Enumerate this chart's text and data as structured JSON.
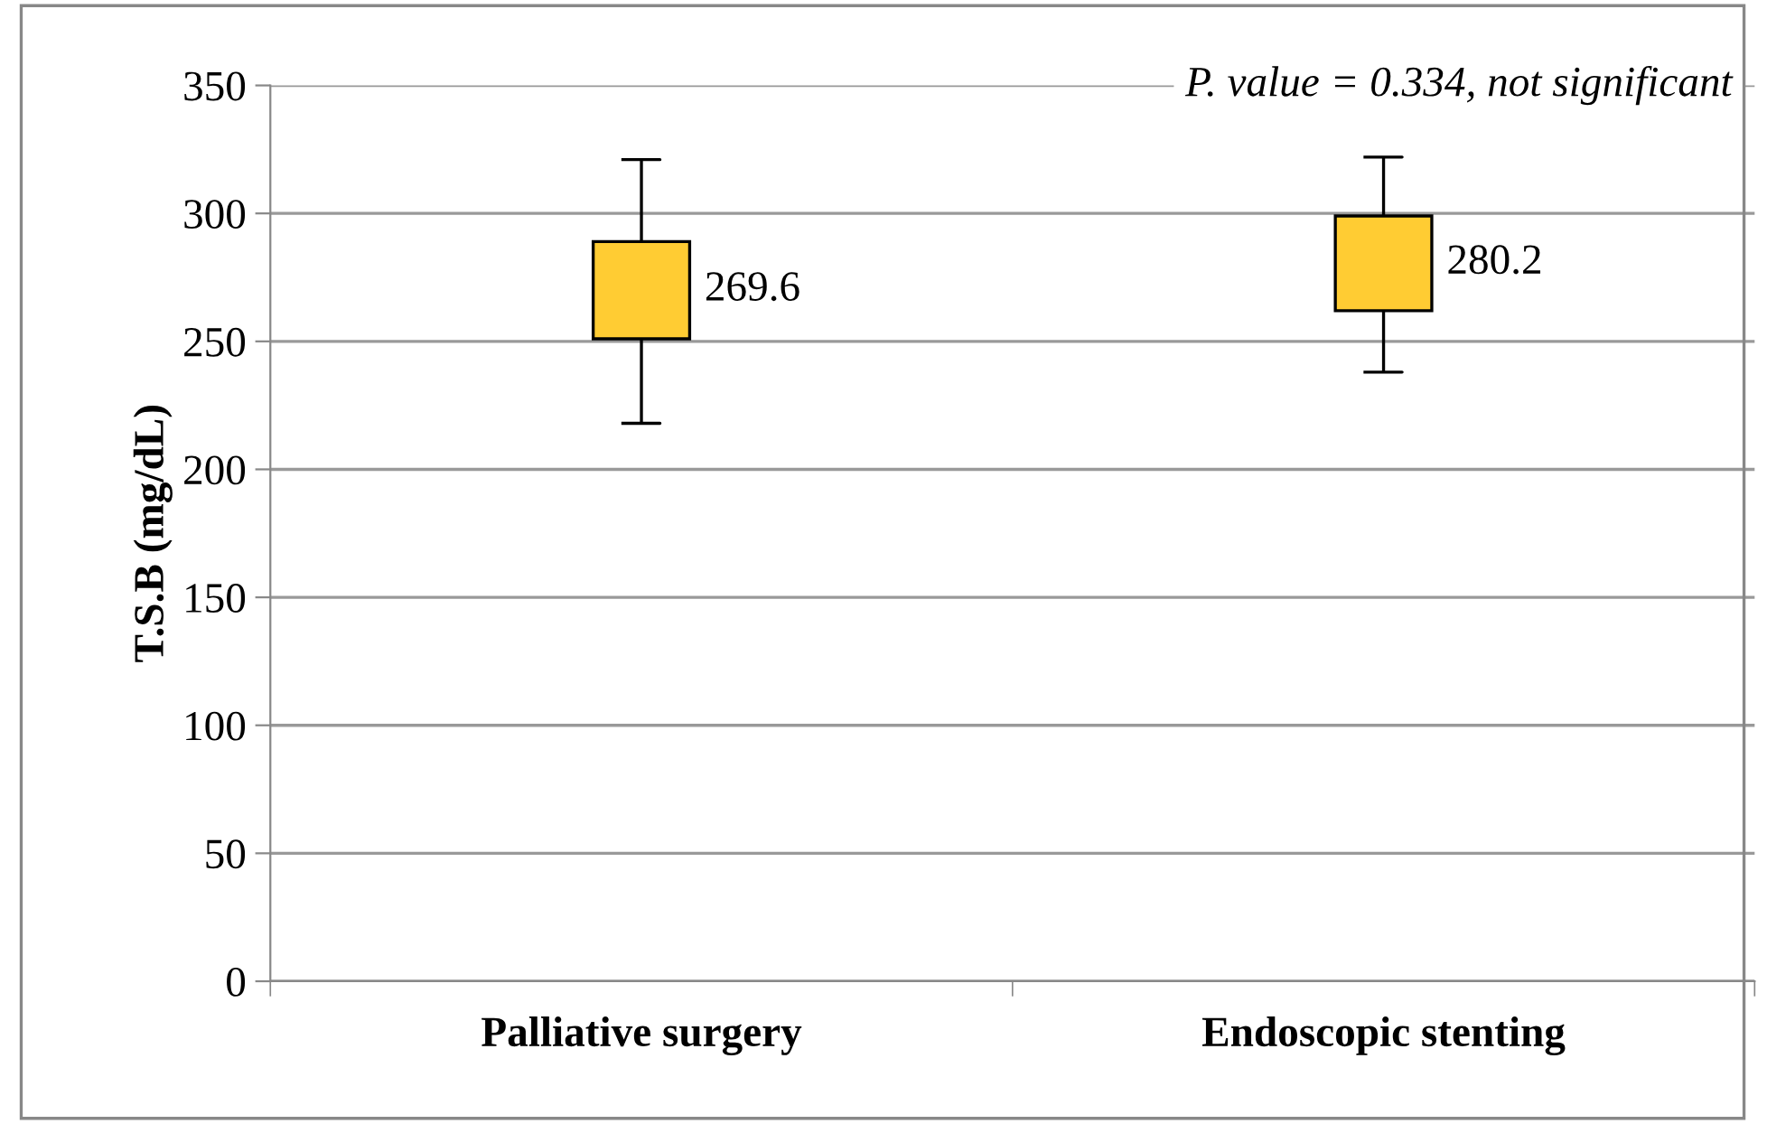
{
  "chart_data": {
    "type": "candlestick",
    "categories": [
      "Palliative surgery",
      "Endoscopic stenting"
    ],
    "ohlc": [
      [
        251,
        321,
        218,
        289
      ],
      [
        262,
        322,
        238,
        299
      ]
    ],
    "color": "#ffcc33",
    "ylabel": "T.S.B (mg/dL)",
    "ylim": [
      0,
      350
    ],
    "yticks": [
      0,
      50,
      100,
      150,
      200,
      250,
      300,
      350
    ],
    "grid": "y",
    "value_labels": [
      "269.6",
      "280.2"
    ],
    "annotations": [
      "P. value = 0.334, not significant"
    ]
  }
}
